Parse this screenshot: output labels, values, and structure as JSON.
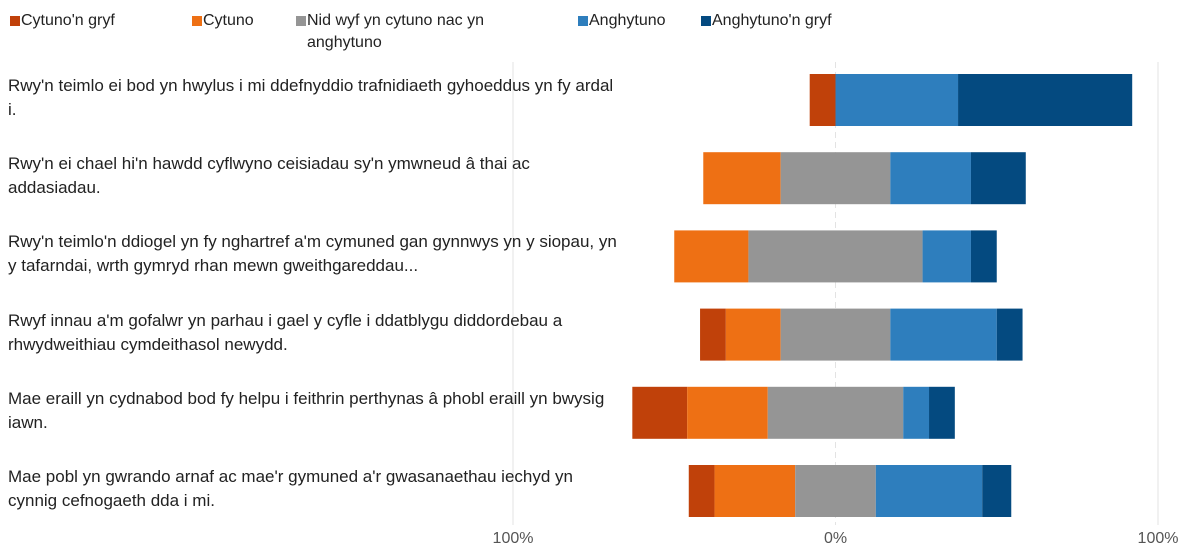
{
  "chart_data": {
    "type": "diverging_bar",
    "categories": [
      "Rwy'n teimlo ei bod yn hwylus i mi ddefnyddio trafnidiaeth gyhoeddus yn fy ardal i.",
      "Rwy'n ei chael hi'n hawdd cyflwyno ceisiadau sy'n ymwneud â thai ac addasiadau.",
      "Rwy'n teimlo'n ddiogel yn fy nghartref a'm cymuned gan gynnwys yn y siopau, yn y tafarndai, wrth gymryd rhan mewn gweithgareddau...",
      "Rwyf innau a'm gofalwr yn parhau i gael y cyfle i ddatblygu diddordebau a rhwydweithiau cymdeithasol newydd.",
      "Mae eraill yn cydnabod bod fy helpu i feithrin perthynas â phobl eraill yn bwysig iawn.",
      "Mae pobl yn gwrando arnaf ac mae'r gymuned a'r gwasanaethau iechyd yn cynnig cefnogaeth dda i mi."
    ],
    "series": [
      {
        "name": "Cytuno'n gryf",
        "color": "#c0410a",
        "values": [
          8,
          0,
          0,
          8,
          17,
          8
        ]
      },
      {
        "name": "Cytuno",
        "color": "#ee7014",
        "values": [
          0,
          24,
          23,
          17,
          25,
          25
        ]
      },
      {
        "name": "Nid wyf yn cytuno nac yn anghytuno",
        "color": "#959595",
        "values": [
          0,
          34,
          54,
          34,
          42,
          25
        ]
      },
      {
        "name": "Anghytuno",
        "color": "#2e7ebd",
        "values": [
          38,
          25,
          15,
          33,
          8,
          33
        ]
      },
      {
        "name": "Anghytuno'n gryf",
        "color": "#044a80",
        "values": [
          54,
          17,
          8,
          8,
          8,
          9
        ]
      }
    ],
    "xlim": [
      -100,
      100
    ],
    "xticks": [
      {
        "value": -100,
        "label": "100%"
      },
      {
        "value": 0,
        "label": "0%"
      },
      {
        "value": 100,
        "label": "100%"
      }
    ],
    "grid": true,
    "legend": "top"
  }
}
